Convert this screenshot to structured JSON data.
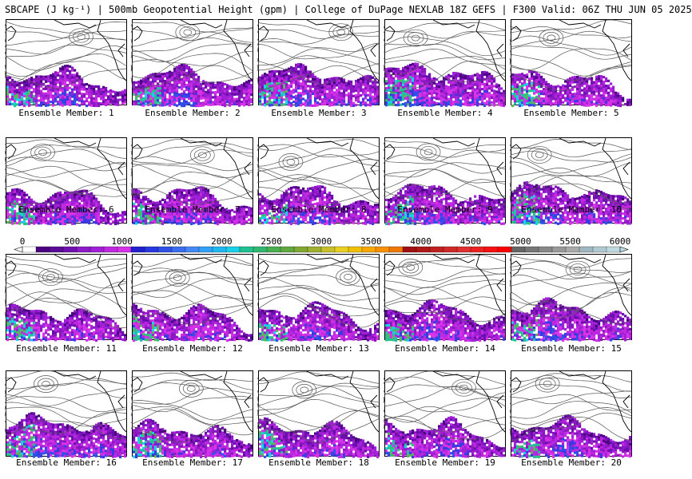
{
  "header": {
    "title": "SBCAPE (J kg⁻¹) | 500mb Geopotential Height (gpm) | College of DuPage NEXLAB 18Z GEFS | F300 Valid: 06Z THU JUN 05 2025"
  },
  "panels": [
    {
      "label": "Ensemble Member: 1"
    },
    {
      "label": "Ensemble Member: 2"
    },
    {
      "label": "Ensemble Member: 3"
    },
    {
      "label": "Ensemble Member: 4"
    },
    {
      "label": "Ensemble Member: 5"
    },
    {
      "label": "Ensemble Member: 6"
    },
    {
      "label": "Ensemble Member: 7"
    },
    {
      "label": "Ensemble Member: 8"
    },
    {
      "label": "Ensemble Member: 9"
    },
    {
      "label": "Ensemble Member: 10"
    },
    {
      "label": "Ensemble Member: 11"
    },
    {
      "label": "Ensemble Member: 12"
    },
    {
      "label": "Ensemble Member: 13"
    },
    {
      "label": "Ensemble Member: 14"
    },
    {
      "label": "Ensemble Member: 15"
    },
    {
      "label": "Ensemble Member: 16"
    },
    {
      "label": "Ensemble Member: 17"
    },
    {
      "label": "Ensemble Member: 18"
    },
    {
      "label": "Ensemble Member: 19"
    },
    {
      "label": "Ensemble Member: 20"
    }
  ],
  "colorbar": {
    "ticks": [
      "0",
      "500",
      "1000",
      "1500",
      "2000",
      "2500",
      "3000",
      "3500",
      "4000",
      "4500",
      "5000",
      "5500",
      "6000"
    ],
    "colors": [
      "#ffffff",
      "#4b0082",
      "#5a0a96",
      "#7010b0",
      "#8c1ac8",
      "#a020d8",
      "#c028e0",
      "#d832e8",
      "#2020d0",
      "#2838e0",
      "#3050e8",
      "#3a6cf0",
      "#4488f8",
      "#30a0f8",
      "#20b8f0",
      "#18d0e8",
      "#20c090",
      "#30b870",
      "#48b050",
      "#60a840",
      "#80a830",
      "#a0b030",
      "#c8c028",
      "#e8d020",
      "#f0c000",
      "#f8a800",
      "#f89000",
      "#f07800",
      "#a01010",
      "#b01818",
      "#c02020",
      "#d02828",
      "#e03030",
      "#ee2020",
      "#f81010",
      "#ff0000",
      "#666666",
      "#777777",
      "#888888",
      "#999999",
      "#aaaaaa",
      "#9fb8c0",
      "#b0c8d0",
      "#c0d8e0"
    ]
  }
}
